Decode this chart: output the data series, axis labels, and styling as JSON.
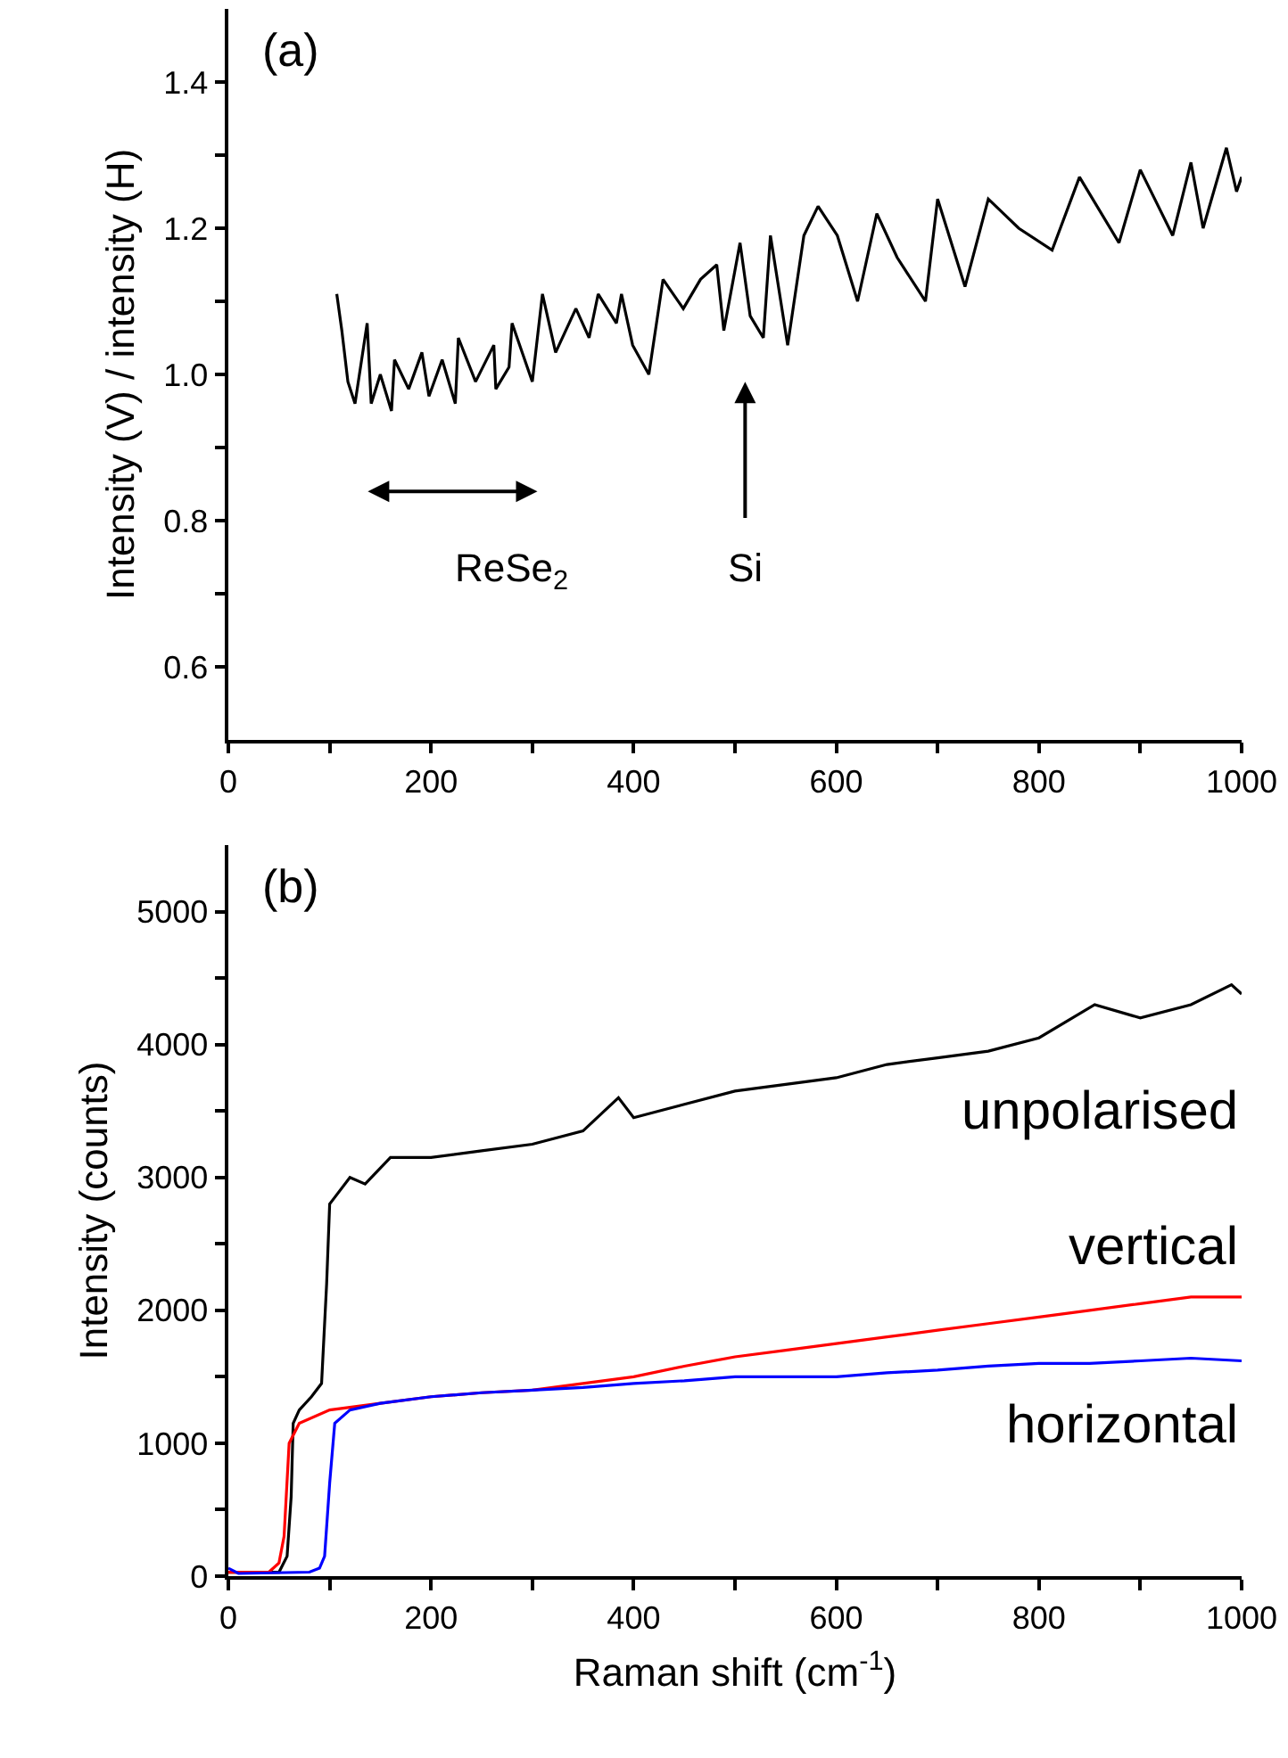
{
  "chart_data": [
    {
      "type": "line",
      "ylabel": "Intensity (V) / intensity (H)",
      "annotations": [
        "(a)",
        "ReSe$_{2}$",
        "Si"
      ],
      "xlim": [
        0,
        1000
      ],
      "ylim": [
        0.5,
        1.5
      ],
      "xticks": [
        0,
        {
          "value": 100,
          "label": null
        },
        200,
        {
          "value": 300,
          "label": null
        },
        400,
        {
          "value": 500,
          "label": null
        },
        600,
        {
          "value": 700,
          "label": null
        },
        800,
        {
          "value": 900,
          "label": null
        },
        1000
      ],
      "yticks": [
        0.6,
        {
          "value": 0.7,
          "label": null
        },
        0.8,
        {
          "value": 0.9,
          "label": null
        },
        {
          "value": 1.0,
          "label": "1.0"
        },
        {
          "value": 1.1,
          "label": null
        },
        1.2,
        {
          "value": 1.3,
          "label": null
        },
        1.4
      ],
      "series": [
        {
          "color": "#000000",
          "x": [
            107,
            112,
            118,
            125,
            137,
            141,
            150,
            161,
            164,
            178,
            191,
            198,
            211,
            224,
            227,
            244,
            262,
            264,
            277,
            280,
            300,
            310,
            323,
            343,
            356,
            365,
            383,
            388,
            399,
            415,
            429,
            449,
            466,
            482,
            489,
            505,
            515,
            528,
            535,
            552,
            568,
            582,
            601,
            621,
            640,
            660,
            688,
            700,
            727,
            750,
            780,
            813,
            840,
            879,
            900,
            932,
            950,
            962,
            985,
            995,
            1000
          ],
          "values": [
            1.11,
            1.06,
            0.99,
            0.96,
            1.07,
            0.96,
            1.0,
            0.95,
            1.02,
            0.98,
            1.03,
            0.97,
            1.02,
            0.96,
            1.05,
            0.99,
            1.04,
            0.98,
            1.01,
            1.07,
            0.99,
            1.11,
            1.03,
            1.09,
            1.05,
            1.11,
            1.07,
            1.11,
            1.04,
            1.0,
            1.13,
            1.09,
            1.13,
            1.15,
            1.06,
            1.18,
            1.08,
            1.05,
            1.19,
            1.04,
            1.19,
            1.23,
            1.19,
            1.1,
            1.22,
            1.16,
            1.1,
            1.24,
            1.12,
            1.24,
            1.2,
            1.17,
            1.27,
            1.18,
            1.28,
            1.19,
            1.29,
            1.2,
            1.31,
            1.25,
            1.27
          ]
        }
      ]
    },
    {
      "type": "line",
      "xlabel": "Raman shift (cm$^{-1}$)",
      "ylabel": "Intensity (counts)",
      "annotations": [
        "(b)"
      ],
      "xlim": [
        0,
        1000
      ],
      "ylim": [
        0,
        5500
      ],
      "xticks": [
        0,
        {
          "value": 100,
          "label": null
        },
        200,
        {
          "value": 300,
          "label": null
        },
        400,
        {
          "value": 500,
          "label": null
        },
        600,
        {
          "value": 700,
          "label": null
        },
        800,
        {
          "value": 900,
          "label": null
        },
        1000
      ],
      "yticks": [
        0,
        {
          "value": 500,
          "label": null
        },
        1000,
        {
          "value": 1500,
          "label": null
        },
        2000,
        {
          "value": 2500,
          "label": null
        },
        3000,
        {
          "value": 3500,
          "label": null
        },
        4000,
        {
          "value": 4500,
          "label": null
        },
        5000
      ],
      "series": [
        {
          "name": "unpolarised",
          "color": "#000000",
          "x": [
            0,
            50,
            58,
            62,
            64,
            70,
            82,
            92,
            97,
            100,
            105,
            120,
            135,
            160,
            200,
            250,
            300,
            350,
            385,
            400,
            450,
            500,
            550,
            600,
            650,
            700,
            750,
            800,
            855,
            900,
            950,
            990,
            1000
          ],
          "values": [
            30,
            30,
            150,
            600,
            1150,
            1250,
            1350,
            1450,
            2200,
            2800,
            2850,
            3000,
            2950,
            3150,
            3150,
            3200,
            3250,
            3350,
            3600,
            3450,
            3550,
            3650,
            3700,
            3750,
            3850,
            3900,
            3950,
            4050,
            4300,
            4200,
            4300,
            4450,
            4380
          ]
        },
        {
          "name": "vertical",
          "color": "#ff0000",
          "x": [
            0,
            40,
            50,
            55,
            60,
            70,
            100,
            150,
            200,
            250,
            300,
            350,
            400,
            450,
            500,
            550,
            600,
            650,
            700,
            750,
            800,
            850,
            900,
            950,
            1000
          ],
          "values": [
            30,
            30,
            100,
            300,
            1000,
            1150,
            1250,
            1300,
            1350,
            1380,
            1400,
            1450,
            1500,
            1580,
            1650,
            1700,
            1750,
            1800,
            1850,
            1900,
            1950,
            2000,
            2050,
            2100,
            2100
          ]
        },
        {
          "name": "horizontal",
          "color": "#0000ff",
          "x": [
            0,
            10,
            80,
            90,
            95,
            100,
            105,
            120,
            150,
            200,
            250,
            300,
            350,
            400,
            450,
            500,
            550,
            600,
            650,
            700,
            750,
            800,
            850,
            900,
            950,
            1000
          ],
          "values": [
            60,
            20,
            30,
            60,
            150,
            700,
            1150,
            1250,
            1300,
            1350,
            1380,
            1400,
            1420,
            1450,
            1470,
            1500,
            1500,
            1500,
            1530,
            1550,
            1580,
            1600,
            1600,
            1620,
            1640,
            1620
          ]
        }
      ]
    }
  ]
}
